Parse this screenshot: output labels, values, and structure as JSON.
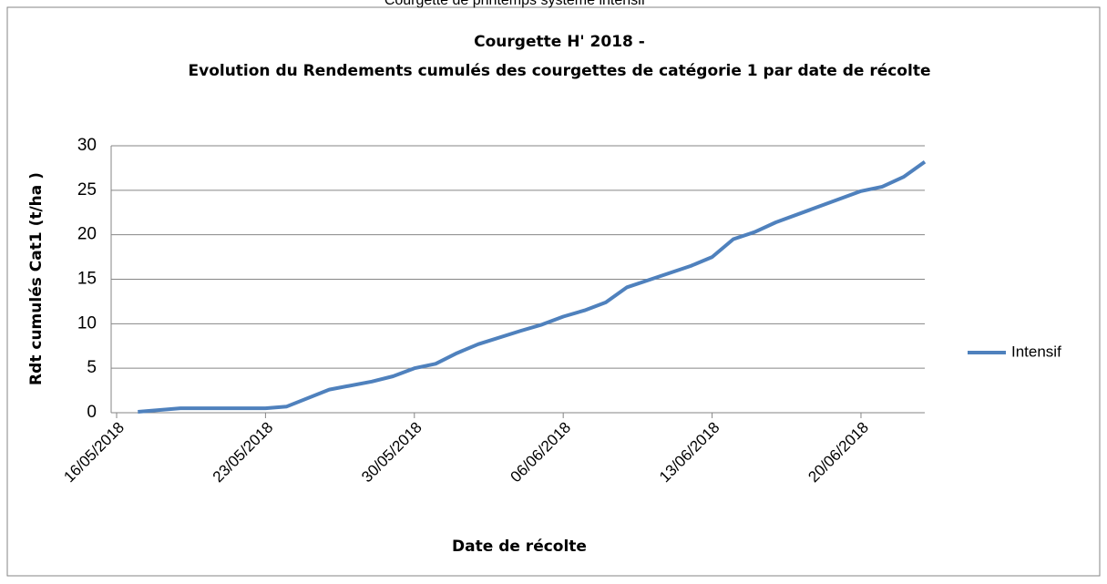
{
  "chart_data": {
    "type": "line",
    "page_caption": "Courgette de printemps système intensif",
    "title": "Courgette H' 2018 -",
    "subtitle": "Evolution du Rendements cumulés des courgettes de catégorie 1 par date de récolte",
    "x_label": "Date de récolte",
    "y_label": "Rdt cumulés Cat1 (t/ha )",
    "x": [
      "2018-05-17",
      "2018-05-19",
      "2018-05-23",
      "2018-05-24",
      "2018-05-26",
      "2018-05-28",
      "2018-05-29",
      "2018-05-30",
      "2018-05-31",
      "2018-06-01",
      "2018-06-02",
      "2018-06-04",
      "2018-06-05",
      "2018-06-06",
      "2018-06-07",
      "2018-06-08",
      "2018-06-09",
      "2018-06-10",
      "2018-06-12",
      "2018-06-13",
      "2018-06-14",
      "2018-06-15",
      "2018-06-16",
      "2018-06-20",
      "2018-06-21",
      "2018-06-22",
      "2018-06-23"
    ],
    "series": [
      {
        "name": "Intensif",
        "color": "#4f81bd",
        "values": [
          0.1,
          0.5,
          0.5,
          0.7,
          2.6,
          3.5,
          4.1,
          5.0,
          5.5,
          6.7,
          7.7,
          9.2,
          9.9,
          10.8,
          11.5,
          12.4,
          14.1,
          14.9,
          16.5,
          17.5,
          19.5,
          20.3,
          21.4,
          24.9,
          25.4,
          26.5,
          28.2
        ]
      }
    ],
    "xlim": [
      "2018-05-16",
      "2018-06-23"
    ],
    "xticks": [
      {
        "value": "2018-05-16",
        "label": "16/05/2018"
      },
      {
        "value": "2018-05-23",
        "label": "23/05/2018"
      },
      {
        "value": "2018-05-30",
        "label": "30/05/2018"
      },
      {
        "value": "2018-06-06",
        "label": "06/06/2018"
      },
      {
        "value": "2018-06-13",
        "label": "13/06/2018"
      },
      {
        "value": "2018-06-20",
        "label": "20/06/2018"
      }
    ],
    "ylim": [
      0,
      30
    ],
    "yticks": [
      0,
      5,
      10,
      15,
      20,
      25,
      30
    ],
    "grid": true,
    "legend": "right"
  }
}
